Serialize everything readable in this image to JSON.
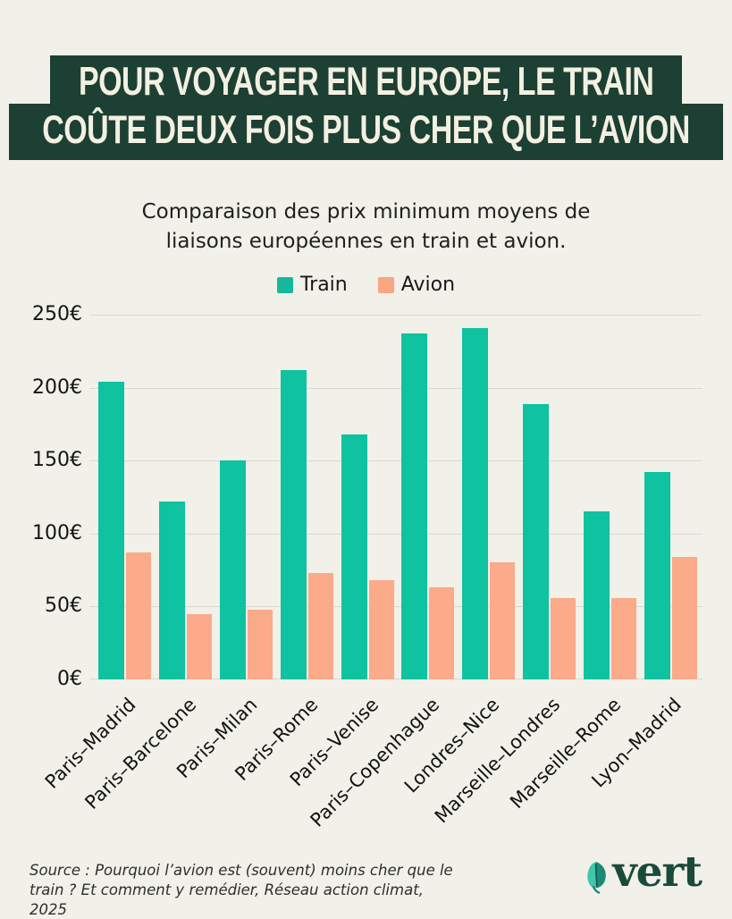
{
  "banner": {
    "line1": "POUR VOYAGER EN EUROPE, LE TRAIN",
    "line2": "COÛTE DEUX FOIS PLUS CHER QUE L’AVION"
  },
  "subtitle": "Comparaison des prix minimum moyens de liaisons européennes en train et avion.",
  "legend": [
    {
      "label": "Train",
      "color": "#15b99a"
    },
    {
      "label": "Avion",
      "color": "#faa584"
    }
  ],
  "chart_data": {
    "type": "bar",
    "title": "Comparaison des prix minimum moyens de liaisons européennes en train et avion.",
    "categories": [
      "Paris–Madrid",
      "Paris–Barcelone",
      "Paris–Milan",
      "Paris–Rome",
      "Paris–Venise",
      "Paris–Copenhague",
      "Londres–Nice",
      "Marseille–Londres",
      "Marseille–Rome",
      "Lyon–Madrid"
    ],
    "series": [
      {
        "name": "Train",
        "color": "#0fc2a0",
        "values": [
          204,
          122,
          150,
          212,
          168,
          237,
          241,
          189,
          115,
          142
        ]
      },
      {
        "name": "Avion",
        "color": "#fbaa8a",
        "values": [
          87,
          45,
          48,
          73,
          68,
          63,
          80,
          56,
          56,
          84
        ]
      }
    ],
    "xlabel": "",
    "ylabel": "",
    "ylim": [
      0,
      250
    ],
    "yticks": [
      0,
      50,
      100,
      150,
      200,
      250
    ],
    "ytick_suffix": "€",
    "grid": true,
    "legend_position": "top"
  },
  "source": "Source : Pourquoi l’avion est (souvent) moins cher que le train ? Et comment y remédier, Réseau action climat, 2025",
  "logo": {
    "text": "vert"
  },
  "colors": {
    "background": "#f1f0e9",
    "banner_bg": "#1c4033",
    "banner_text": "#f4f0e1",
    "train": "#0fc2a0",
    "avion": "#fbaa8a",
    "logo_green": "#1a4a3a",
    "gridline": "#d9d8d0"
  }
}
